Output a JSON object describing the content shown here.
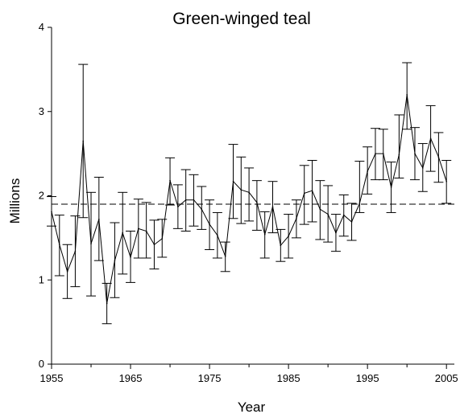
{
  "chart_data": {
    "type": "line",
    "title": "Green-winged teal",
    "xlabel": "Year",
    "ylabel": "Millions",
    "xlim": [
      1955,
      2006
    ],
    "ylim": [
      0,
      4
    ],
    "x_ticks": [
      "1955",
      "1965",
      "1975",
      "1985",
      "1995",
      "2005"
    ],
    "y_ticks": [
      "0",
      "1",
      "2",
      "3",
      "4"
    ],
    "grid": false,
    "reference_line": {
      "value": 1.9,
      "style": "dashed"
    },
    "series": [
      {
        "x": [
          1955,
          1956,
          1957,
          1958,
          1959,
          1960,
          1961,
          1962,
          1963,
          1964,
          1965,
          1966,
          1967,
          1968,
          1969,
          1970,
          1971,
          1972,
          1973,
          1974,
          1975,
          1976,
          1977,
          1978,
          1979,
          1980,
          1981,
          1982,
          1983,
          1984,
          1985,
          1986,
          1987,
          1988,
          1989,
          1990,
          1991,
          1992,
          1993,
          1994,
          1995,
          1996,
          1997,
          1998,
          1999,
          2000,
          2001,
          2002,
          2003,
          2004,
          2005
        ],
        "y": [
          1.81,
          1.42,
          1.1,
          1.34,
          2.65,
          1.43,
          1.72,
          0.72,
          1.23,
          1.56,
          1.27,
          1.61,
          1.58,
          1.42,
          1.49,
          2.18,
          1.87,
          1.95,
          1.95,
          1.84,
          1.66,
          1.53,
          1.28,
          2.17,
          2.07,
          2.04,
          1.92,
          1.54,
          1.87,
          1.41,
          1.52,
          1.73,
          2.03,
          2.06,
          1.84,
          1.78,
          1.56,
          1.77,
          1.69,
          1.91,
          2.29,
          2.5,
          2.5,
          2.1,
          2.49,
          3.2,
          2.5,
          2.33,
          2.68,
          2.46,
          2.17
        ],
        "error_low": [
          1.64,
          1.05,
          0.78,
          0.92,
          1.74,
          0.81,
          1.23,
          0.48,
          0.79,
          1.07,
          0.97,
          1.26,
          1.26,
          1.13,
          1.27,
          1.89,
          1.61,
          1.58,
          1.64,
          1.6,
          1.36,
          1.26,
          1.1,
          1.73,
          1.67,
          1.7,
          1.59,
          1.26,
          1.56,
          1.22,
          1.26,
          1.5,
          1.66,
          1.69,
          1.48,
          1.45,
          1.34,
          1.52,
          1.47,
          1.8,
          2.02,
          2.19,
          2.19,
          1.8,
          2.21,
          2.79,
          2.19,
          2.05,
          2.29,
          2.16,
          1.91
        ],
        "error_high": [
          1.99,
          1.77,
          1.42,
          1.76,
          3.56,
          2.04,
          2.22,
          0.96,
          1.68,
          2.04,
          1.58,
          1.96,
          1.92,
          1.71,
          1.72,
          2.45,
          2.13,
          2.31,
          2.25,
          2.11,
          1.95,
          1.8,
          1.45,
          2.61,
          2.46,
          2.33,
          2.18,
          1.81,
          2.17,
          1.6,
          1.78,
          1.95,
          2.36,
          2.42,
          2.18,
          2.12,
          1.78,
          2.01,
          1.91,
          2.41,
          2.58,
          2.8,
          2.79,
          2.4,
          2.96,
          3.58,
          2.81,
          2.62,
          3.07,
          2.75,
          2.42
        ]
      }
    ]
  }
}
